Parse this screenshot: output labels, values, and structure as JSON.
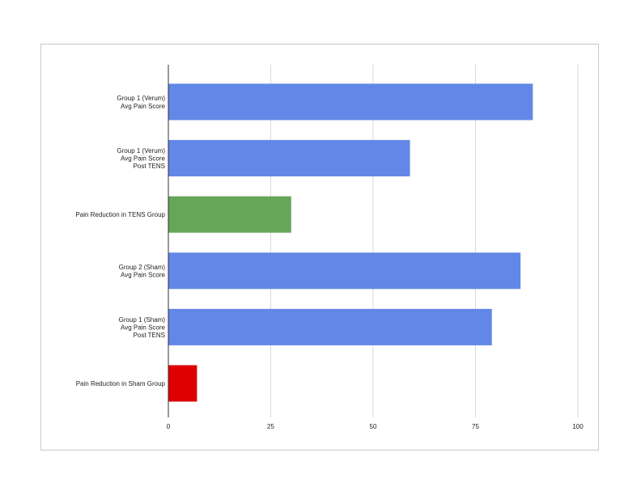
{
  "chart_data": {
    "type": "bar",
    "orientation": "horizontal",
    "categories": [
      [
        "Group 1 (Verum)",
        "Avg Pain Score"
      ],
      [
        "Group 1 (Verum)",
        "Avg Pain Score",
        "Post TENS"
      ],
      [
        "Pain Reduction in TENS Group"
      ],
      [
        "Group 2 (Sham)",
        "Avg Pain Score"
      ],
      [
        "Group 1 (Sham)",
        "Avg Pain Score",
        "Post TENS"
      ],
      [
        "Pain Reduction in Sham Group"
      ]
    ],
    "values": [
      89,
      59,
      30,
      86,
      79,
      7
    ],
    "bar_colors": [
      "#6287e6",
      "#6287e6",
      "#66a65a",
      "#6287e6",
      "#6287e6",
      "#dd0000"
    ],
    "xlim": [
      0,
      100
    ],
    "xticks": [
      0,
      25,
      50,
      75,
      100
    ],
    "title": "",
    "xlabel": "",
    "ylabel": "",
    "grid": true,
    "legend": "none"
  },
  "colors": {
    "grid": "#d9d9d9",
    "axis": "#333333",
    "frame": "#c8c8c8"
  }
}
